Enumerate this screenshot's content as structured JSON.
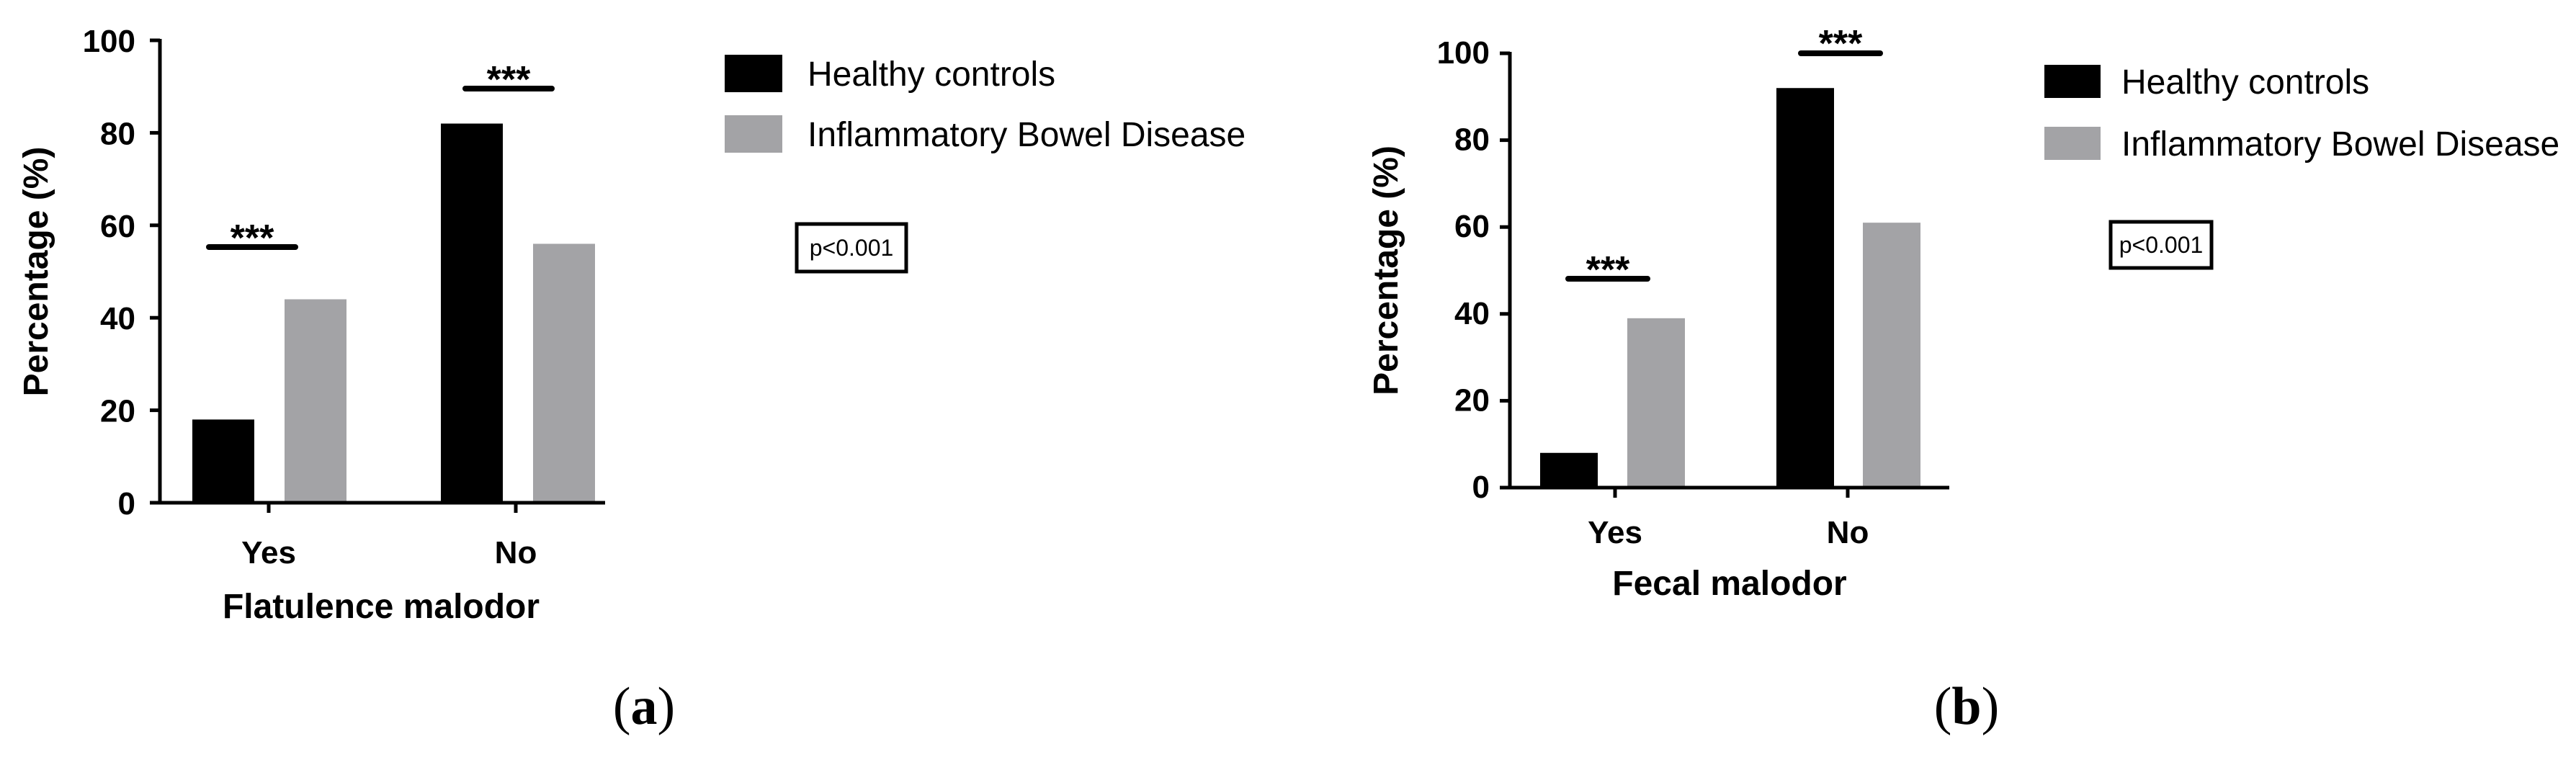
{
  "colors": {
    "healthy": "#000000",
    "ibd": "#a3a3a6",
    "axis": "#000000"
  },
  "chart_data": [
    {
      "type": "bar",
      "panel_label": "a",
      "categories": [
        "Yes",
        "No"
      ],
      "series": [
        {
          "name": "Healthy controls",
          "values": [
            18,
            82
          ]
        },
        {
          "name": "Inflammatory Bowel Disease",
          "values": [
            44,
            56
          ]
        }
      ],
      "xlabel": "Flatulence malodor",
      "ylabel": "Percentage (%)",
      "ylim": [
        0,
        100
      ],
      "yticks": [
        "0",
        "20",
        "40",
        "60",
        "80",
        "100"
      ],
      "significance": [
        "***",
        "***"
      ],
      "annotation": "p<0.001",
      "legend_position": "right"
    },
    {
      "type": "bar",
      "panel_label": "b",
      "categories": [
        "Yes",
        "No"
      ],
      "series": [
        {
          "name": "Healthy controls",
          "values": [
            8,
            92
          ]
        },
        {
          "name": "Inflammatory Bowel Disease",
          "values": [
            39,
            61
          ]
        }
      ],
      "xlabel": "Fecal malodor",
      "ylabel": "Percentage (%)",
      "ylim": [
        0,
        100
      ],
      "yticks": [
        "0",
        "20",
        "40",
        "60",
        "80",
        "100"
      ],
      "significance": [
        "***",
        "***"
      ],
      "annotation": "p<0.001",
      "legend_position": "right"
    }
  ]
}
